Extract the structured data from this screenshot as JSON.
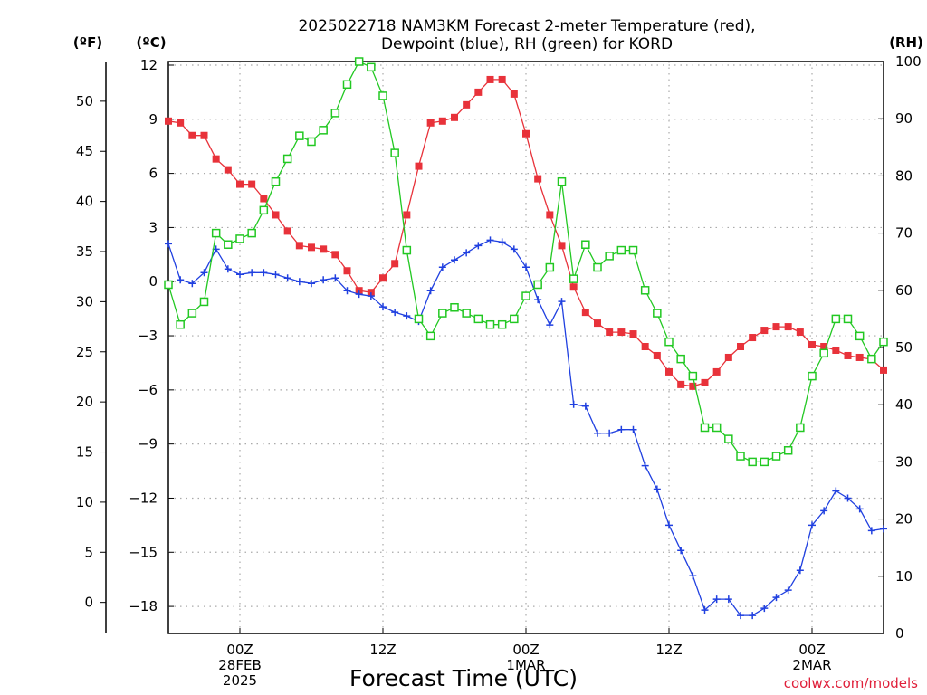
{
  "chart_data": {
    "type": "line",
    "title": [
      "2025022718 NAM3KM Forecast 2-meter Temperature (red),",
      "Dewpoint (blue), RH (green) for KORD"
    ],
    "xlabel": "Forecast Time (UTC)",
    "credit": "coolwx.com/models",
    "unit_labels": {
      "fahrenheit": "(ºF)",
      "celsius": "(ºC)",
      "rh": "(RH)"
    },
    "x_range_hours": [
      0,
      60
    ],
    "x_tick_hours": [
      6,
      18,
      30,
      42,
      54
    ],
    "x_tick_labels": [
      [
        "00Z",
        "28FEB",
        "2025"
      ],
      [
        "12Z"
      ],
      [
        "00Z",
        "1MAR"
      ],
      [
        "12Z"
      ],
      [
        "00Z",
        "2MAR"
      ]
    ],
    "y_celsius": {
      "range": [
        -19.5,
        12.2
      ],
      "ticks": [
        12,
        9,
        6,
        3,
        0,
        -3,
        -6,
        -9,
        -12,
        -15,
        -18
      ]
    },
    "y_fahrenheit": {
      "ticks": [
        50,
        45,
        40,
        35,
        30,
        25,
        20,
        15,
        10,
        5,
        0
      ]
    },
    "y_rh": {
      "range": [
        0,
        100
      ],
      "ticks": [
        100,
        90,
        80,
        70,
        60,
        50,
        40,
        30,
        20,
        10,
        0
      ]
    },
    "grid": true,
    "series": [
      {
        "name": "2-meter Temperature",
        "axis": "celsius",
        "color": "#e8323a",
        "marker": "filled-square",
        "x": [
          0,
          1,
          2,
          3,
          4,
          5,
          6,
          7,
          8,
          9,
          10,
          11,
          12,
          13,
          14,
          15,
          16,
          17,
          18,
          19,
          20,
          21,
          22,
          23,
          24,
          25,
          26,
          27,
          28,
          29,
          30,
          31,
          32,
          33,
          34,
          35,
          36,
          37,
          38,
          39,
          40,
          41,
          42,
          43,
          44,
          45,
          46,
          47,
          48,
          49,
          50,
          51,
          52,
          53,
          54,
          55,
          56,
          57,
          58,
          59,
          60
        ],
        "y": [
          8.9,
          8.8,
          8.1,
          8.1,
          6.8,
          6.2,
          5.4,
          5.4,
          4.6,
          3.7,
          2.8,
          2.0,
          1.9,
          1.8,
          1.5,
          0.6,
          -0.5,
          -0.6,
          0.2,
          1.0,
          3.7,
          6.4,
          8.8,
          8.9,
          9.1,
          9.8,
          10.5,
          11.2,
          11.2,
          10.4,
          8.2,
          5.7,
          3.7,
          2.0,
          -0.3,
          -1.7,
          -2.3,
          -2.8,
          -2.8,
          -2.9,
          -3.6,
          -4.1,
          -5.0,
          -5.7,
          -5.8,
          -5.6,
          -5.0,
          -4.2,
          -3.6,
          -3.1,
          -2.7,
          -2.5,
          -2.5,
          -2.8,
          -3.5,
          -3.6,
          -3.8,
          -4.1,
          -4.2,
          -4.3,
          -4.9
        ]
      },
      {
        "name": "Dewpoint",
        "axis": "celsius",
        "color": "#2040e0",
        "marker": "plus",
        "x": [
          0,
          1,
          2,
          3,
          4,
          5,
          6,
          7,
          8,
          9,
          10,
          11,
          12,
          13,
          14,
          15,
          16,
          17,
          18,
          19,
          20,
          21,
          22,
          23,
          24,
          25,
          26,
          27,
          28,
          29,
          30,
          31,
          32,
          33,
          34,
          35,
          36,
          37,
          38,
          39,
          40,
          41,
          42,
          43,
          44,
          45,
          46,
          47,
          48,
          49,
          50,
          51,
          52,
          53,
          54,
          55,
          56,
          57,
          58,
          59,
          60
        ],
        "y": [
          2.1,
          0.1,
          -0.1,
          0.5,
          1.8,
          0.7,
          0.4,
          0.5,
          0.5,
          0.4,
          0.2,
          0.0,
          -0.1,
          0.1,
          0.2,
          -0.5,
          -0.7,
          -0.8,
          -1.4,
          -1.7,
          -1.9,
          -2.2,
          -0.5,
          0.8,
          1.2,
          1.6,
          2.0,
          2.3,
          2.2,
          1.8,
          0.8,
          -1.0,
          -2.4,
          -1.1,
          -6.8,
          -6.9,
          -8.4,
          -8.4,
          -8.2,
          -8.2,
          -10.2,
          -11.5,
          -13.5,
          -14.9,
          -16.3,
          -18.2,
          -17.6,
          -17.6,
          -18.5,
          -18.5,
          -18.1,
          -17.5,
          -17.1,
          -16.0,
          -13.5,
          -12.7,
          -11.6,
          -12.0,
          -12.6,
          -13.8,
          -13.7
        ]
      },
      {
        "name": "RH",
        "axis": "rh",
        "color": "#22c822",
        "marker": "open-square",
        "x": [
          0,
          1,
          2,
          3,
          4,
          5,
          6,
          7,
          8,
          9,
          10,
          11,
          12,
          13,
          14,
          15,
          16,
          17,
          18,
          19,
          20,
          21,
          22,
          23,
          24,
          25,
          26,
          27,
          28,
          29,
          30,
          31,
          32,
          33,
          34,
          35,
          36,
          37,
          38,
          39,
          40,
          41,
          42,
          43,
          44,
          45,
          46,
          47,
          48,
          49,
          50,
          51,
          52,
          53,
          54,
          55,
          56,
          57,
          58,
          59,
          60
        ],
        "y": [
          61,
          54,
          56,
          58,
          70,
          68,
          69,
          70,
          74,
          79,
          83,
          87,
          86,
          88,
          91,
          96,
          100,
          99,
          94,
          84,
          67,
          55,
          52,
          56,
          57,
          56,
          55,
          54,
          54,
          55,
          59,
          61,
          64,
          79,
          62,
          68,
          64,
          66,
          67,
          67,
          60,
          56,
          51,
          48,
          45,
          36,
          36,
          34,
          31,
          30,
          30,
          31,
          32,
          36,
          45,
          49,
          55,
          55,
          52,
          48,
          51
        ]
      }
    ]
  }
}
